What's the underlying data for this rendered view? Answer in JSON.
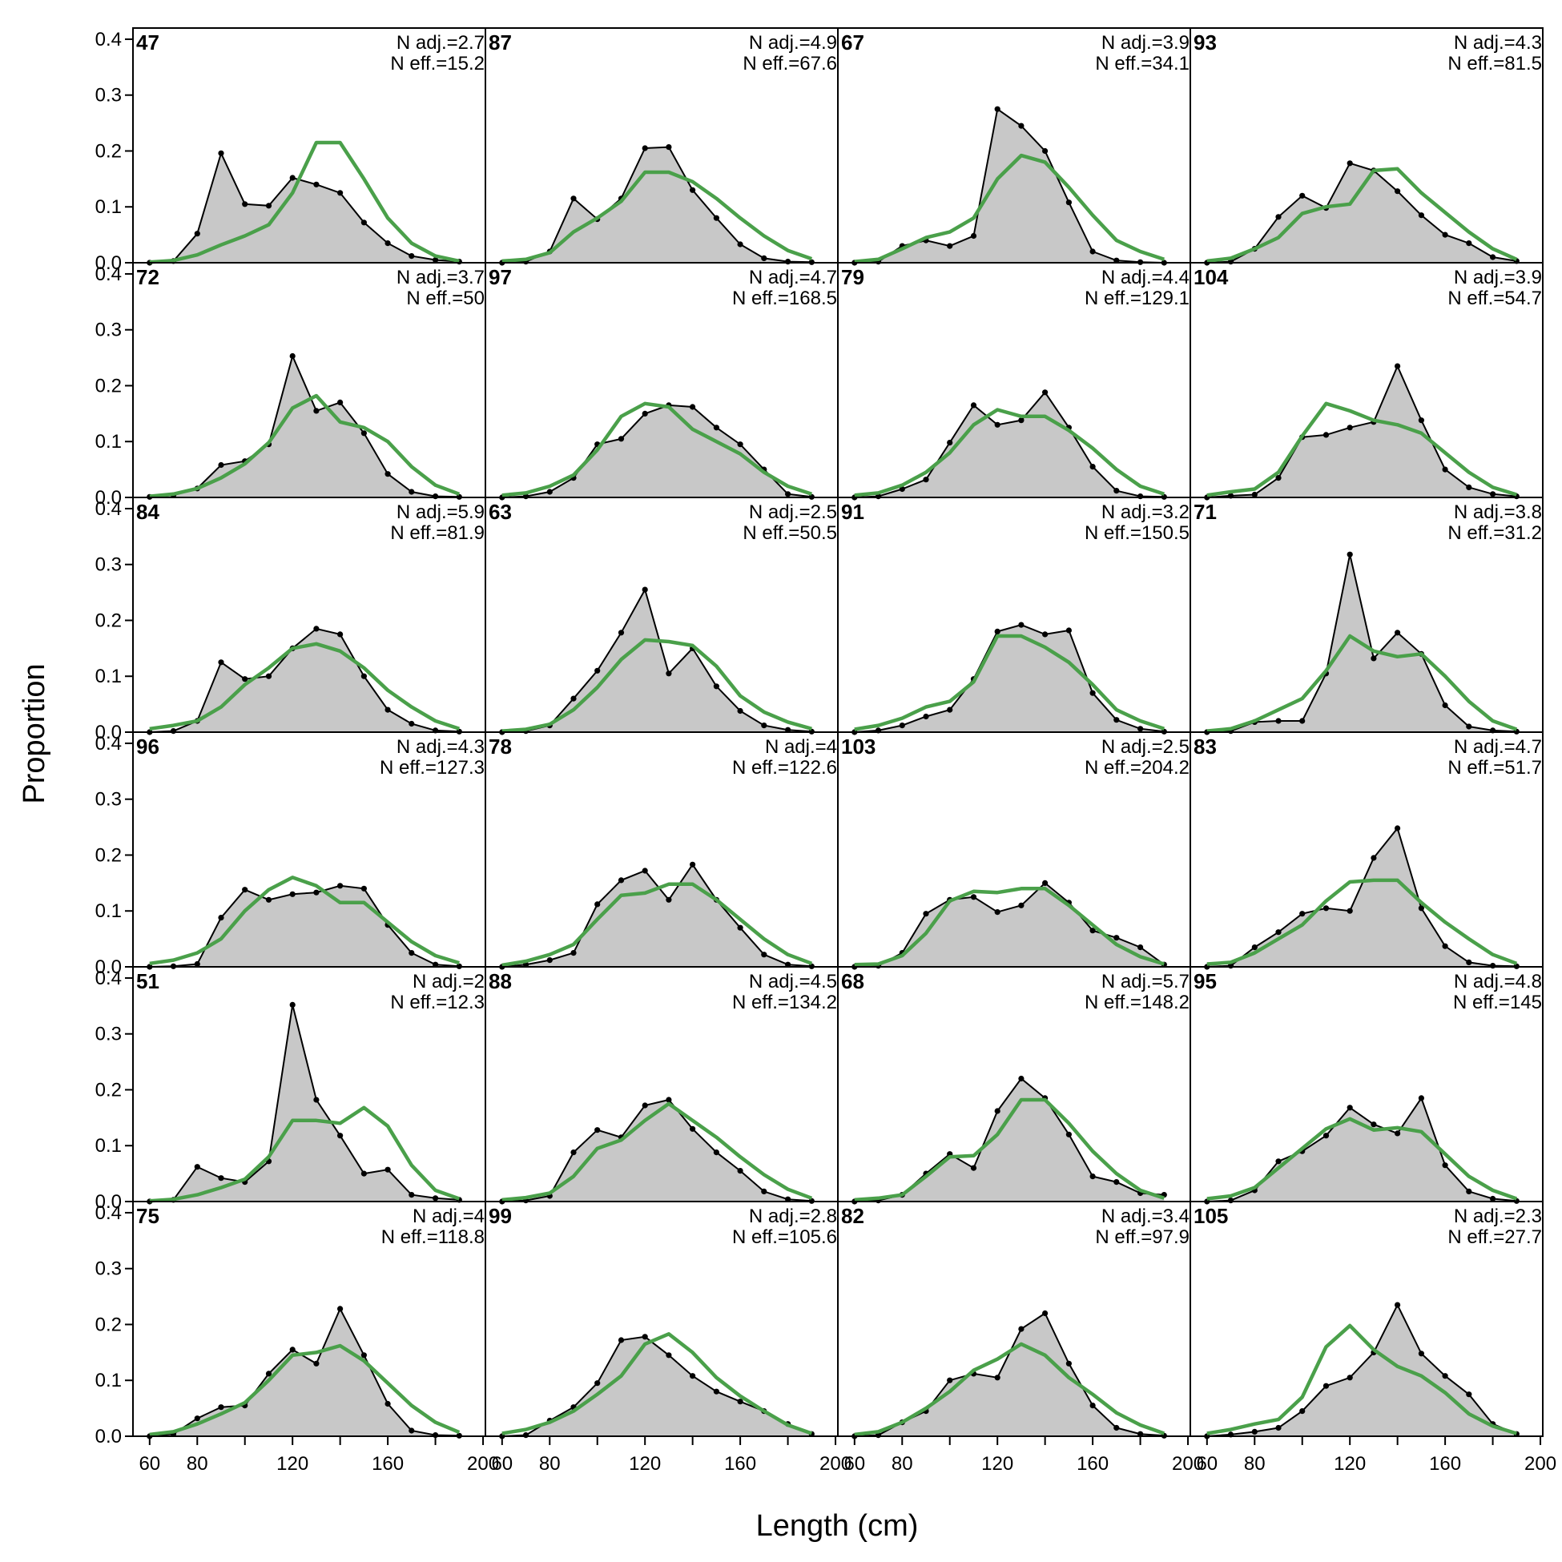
{
  "chart_data": {
    "type": "area",
    "xlabel": "Length (cm)",
    "ylabel": "Proportion",
    "xlim": [
      53,
      201
    ],
    "ylim": [
      0,
      0.42
    ],
    "x_ticks": [
      60,
      80,
      120,
      160,
      200
    ],
    "y_ticks": [
      0.0,
      0.1,
      0.2,
      0.3,
      0.4
    ],
    "y_tick_labels": [
      "0.0",
      "0.1",
      "0.2",
      "0.3",
      "0.4"
    ],
    "grid": false,
    "x": [
      60,
      70,
      80,
      90,
      100,
      110,
      120,
      130,
      140,
      150,
      160,
      170,
      180,
      190
    ],
    "colors": {
      "observed_fill": "#c8c8c8",
      "observed_line": "#000000",
      "expected_line": "#4aa04a",
      "zero_line": "#bdbdbd",
      "frame": "#000000"
    },
    "series": [
      {
        "name": "Observed",
        "role": "observed"
      },
      {
        "name": "Expected",
        "role": "expected"
      }
    ],
    "panels": [
      {
        "label": "47",
        "n_adj": "N adj.=2.7",
        "n_eff": "N eff.=15.2",
        "observed": [
          0.0,
          0.003,
          0.052,
          0.196,
          0.105,
          0.102,
          0.152,
          0.14,
          0.125,
          0.072,
          0.035,
          0.012,
          0.005,
          0.002
        ],
        "expected": [
          0.001,
          0.004,
          0.014,
          0.032,
          0.048,
          0.068,
          0.125,
          0.215,
          0.215,
          0.15,
          0.08,
          0.035,
          0.012,
          0.003
        ]
      },
      {
        "label": "72",
        "n_adj": "N adj.=3.7",
        "n_eff": "N eff.=50",
        "observed": [
          0.001,
          0.004,
          0.016,
          0.058,
          0.065,
          0.095,
          0.253,
          0.155,
          0.17,
          0.115,
          0.042,
          0.01,
          0.002,
          0.001
        ],
        "expected": [
          0.002,
          0.006,
          0.016,
          0.035,
          0.06,
          0.098,
          0.16,
          0.182,
          0.135,
          0.125,
          0.1,
          0.055,
          0.022,
          0.006
        ]
      },
      {
        "label": "84",
        "n_adj": "N adj.=5.9",
        "n_eff": "N eff.=81.9",
        "observed": [
          0.0,
          0.002,
          0.02,
          0.125,
          0.095,
          0.1,
          0.15,
          0.185,
          0.175,
          0.1,
          0.04,
          0.015,
          0.003,
          0.001
        ],
        "expected": [
          0.006,
          0.012,
          0.02,
          0.045,
          0.085,
          0.115,
          0.15,
          0.158,
          0.145,
          0.115,
          0.075,
          0.045,
          0.02,
          0.006
        ]
      },
      {
        "label": "96",
        "n_adj": "N adj.=4.3",
        "n_eff": "N eff.=127.3",
        "observed": [
          0.0,
          0.001,
          0.005,
          0.088,
          0.138,
          0.12,
          0.13,
          0.133,
          0.145,
          0.14,
          0.075,
          0.025,
          0.004,
          0.001
        ],
        "expected": [
          0.006,
          0.012,
          0.025,
          0.05,
          0.1,
          0.138,
          0.16,
          0.145,
          0.115,
          0.115,
          0.08,
          0.045,
          0.02,
          0.007
        ]
      },
      {
        "label": "51",
        "n_adj": "N adj.=2",
        "n_eff": "N eff.=12.3",
        "observed": [
          0.0,
          0.003,
          0.062,
          0.042,
          0.035,
          0.072,
          0.352,
          0.182,
          0.118,
          0.05,
          0.057,
          0.012,
          0.006,
          0.003
        ],
        "expected": [
          0.001,
          0.004,
          0.012,
          0.025,
          0.04,
          0.08,
          0.145,
          0.145,
          0.14,
          0.168,
          0.135,
          0.065,
          0.02,
          0.005
        ]
      },
      {
        "label": "75",
        "n_adj": "N adj.=4",
        "n_eff": "N eff.=118.8",
        "observed": [
          0.0,
          0.004,
          0.032,
          0.052,
          0.055,
          0.112,
          0.155,
          0.13,
          0.228,
          0.145,
          0.058,
          0.01,
          0.002,
          0.001
        ],
        "expected": [
          0.003,
          0.008,
          0.022,
          0.04,
          0.06,
          0.1,
          0.145,
          0.15,
          0.162,
          0.135,
          0.095,
          0.055,
          0.025,
          0.007
        ]
      },
      {
        "label": "87",
        "n_adj": "N adj.=4.9",
        "n_eff": "N eff.=67.6",
        "observed": [
          0.0,
          0.002,
          0.02,
          0.115,
          0.078,
          0.115,
          0.205,
          0.207,
          0.13,
          0.08,
          0.033,
          0.008,
          0.002,
          0.001
        ],
        "expected": [
          0.003,
          0.006,
          0.018,
          0.055,
          0.08,
          0.11,
          0.162,
          0.162,
          0.145,
          0.115,
          0.08,
          0.048,
          0.022,
          0.007
        ]
      },
      {
        "label": "97",
        "n_adj": "N adj.=4.7",
        "n_eff": "N eff.=168.5",
        "observed": [
          0.0,
          0.002,
          0.01,
          0.035,
          0.095,
          0.105,
          0.15,
          0.165,
          0.162,
          0.125,
          0.095,
          0.05,
          0.006,
          0.001
        ],
        "expected": [
          0.004,
          0.008,
          0.02,
          0.04,
          0.085,
          0.145,
          0.168,
          0.162,
          0.122,
          0.1,
          0.078,
          0.045,
          0.02,
          0.006
        ]
      },
      {
        "label": "63",
        "n_adj": "N adj.=2.5",
        "n_eff": "N eff.=50.5",
        "observed": [
          0.0,
          0.002,
          0.012,
          0.06,
          0.11,
          0.178,
          0.255,
          0.105,
          0.15,
          0.082,
          0.038,
          0.012,
          0.004,
          0.001
        ],
        "expected": [
          0.002,
          0.005,
          0.014,
          0.04,
          0.08,
          0.13,
          0.165,
          0.162,
          0.155,
          0.118,
          0.065,
          0.036,
          0.018,
          0.006
        ]
      },
      {
        "label": "78",
        "n_adj": "N adj.=4",
        "n_eff": "N eff.=122.6",
        "observed": [
          0.0,
          0.004,
          0.012,
          0.025,
          0.112,
          0.155,
          0.172,
          0.12,
          0.183,
          0.12,
          0.07,
          0.022,
          0.004,
          0.001
        ],
        "expected": [
          0.003,
          0.01,
          0.022,
          0.04,
          0.085,
          0.128,
          0.132,
          0.148,
          0.148,
          0.12,
          0.085,
          0.05,
          0.022,
          0.006
        ]
      },
      {
        "label": "88",
        "n_adj": "N adj.=4.5",
        "n_eff": "N eff.=134.2",
        "observed": [
          0.0,
          0.002,
          0.01,
          0.088,
          0.128,
          0.115,
          0.172,
          0.182,
          0.13,
          0.088,
          0.055,
          0.018,
          0.004,
          0.001
        ],
        "expected": [
          0.003,
          0.007,
          0.015,
          0.045,
          0.095,
          0.11,
          0.145,
          0.175,
          0.145,
          0.115,
          0.08,
          0.048,
          0.022,
          0.006
        ]
      },
      {
        "label": "99",
        "n_adj": "N adj.=2.8",
        "n_eff": "N eff.=105.6",
        "observed": [
          0.0,
          0.002,
          0.028,
          0.052,
          0.095,
          0.172,
          0.178,
          0.145,
          0.108,
          0.08,
          0.062,
          0.045,
          0.022,
          0.004
        ],
        "expected": [
          0.005,
          0.012,
          0.025,
          0.045,
          0.075,
          0.108,
          0.165,
          0.183,
          0.15,
          0.105,
          0.072,
          0.045,
          0.02,
          0.005
        ]
      },
      {
        "label": "67",
        "n_adj": "N adj.=3.9",
        "n_eff": "N eff.=34.1",
        "observed": [
          0.0,
          0.002,
          0.03,
          0.04,
          0.03,
          0.048,
          0.275,
          0.245,
          0.2,
          0.108,
          0.02,
          0.004,
          0.001,
          0.0
        ],
        "expected": [
          0.002,
          0.006,
          0.025,
          0.045,
          0.055,
          0.08,
          0.15,
          0.192,
          0.18,
          0.135,
          0.085,
          0.04,
          0.02,
          0.006
        ]
      },
      {
        "label": "79",
        "n_adj": "N adj.=4.4",
        "n_eff": "N eff.=129.1",
        "observed": [
          0.0,
          0.002,
          0.015,
          0.032,
          0.098,
          0.165,
          0.13,
          0.138,
          0.188,
          0.125,
          0.055,
          0.012,
          0.002,
          0.001
        ],
        "expected": [
          0.004,
          0.008,
          0.022,
          0.045,
          0.08,
          0.13,
          0.157,
          0.145,
          0.145,
          0.12,
          0.088,
          0.05,
          0.02,
          0.006
        ]
      },
      {
        "label": "91",
        "n_adj": "N adj.=3.2",
        "n_eff": "N eff.=150.5",
        "observed": [
          0.0,
          0.003,
          0.012,
          0.028,
          0.04,
          0.095,
          0.18,
          0.192,
          0.175,
          0.182,
          0.07,
          0.022,
          0.006,
          0.001
        ],
        "expected": [
          0.005,
          0.012,
          0.025,
          0.045,
          0.055,
          0.09,
          0.172,
          0.172,
          0.152,
          0.125,
          0.085,
          0.04,
          0.02,
          0.006
        ]
      },
      {
        "label": "103",
        "n_adj": "N adj.=2.5",
        "n_eff": "N eff.=204.2",
        "observed": [
          0.0,
          0.002,
          0.025,
          0.095,
          0.12,
          0.125,
          0.098,
          0.11,
          0.15,
          0.115,
          0.065,
          0.052,
          0.035,
          0.004
        ],
        "expected": [
          0.004,
          0.005,
          0.02,
          0.06,
          0.118,
          0.135,
          0.133,
          0.14,
          0.14,
          0.11,
          0.075,
          0.04,
          0.018,
          0.005
        ]
      },
      {
        "label": "68",
        "n_adj": "N adj.=5.7",
        "n_eff": "N eff.=148.2",
        "observed": [
          0.0,
          0.002,
          0.012,
          0.05,
          0.085,
          0.06,
          0.162,
          0.22,
          0.185,
          0.12,
          0.045,
          0.035,
          0.015,
          0.012
        ],
        "expected": [
          0.003,
          0.006,
          0.012,
          0.045,
          0.08,
          0.082,
          0.12,
          0.182,
          0.182,
          0.14,
          0.09,
          0.05,
          0.02,
          0.006
        ]
      },
      {
        "label": "82",
        "n_adj": "N adj.=3.4",
        "n_eff": "N eff.=97.9",
        "observed": [
          0.0,
          0.002,
          0.025,
          0.045,
          0.1,
          0.112,
          0.105,
          0.192,
          0.22,
          0.13,
          0.055,
          0.015,
          0.004,
          0.001
        ],
        "expected": [
          0.003,
          0.008,
          0.025,
          0.05,
          0.08,
          0.118,
          0.138,
          0.165,
          0.145,
          0.105,
          0.075,
          0.042,
          0.02,
          0.005
        ]
      },
      {
        "label": "93",
        "n_adj": "N adj.=4.3",
        "n_eff": "N eff.=81.5",
        "observed": [
          0.0,
          0.002,
          0.025,
          0.082,
          0.12,
          0.098,
          0.178,
          0.165,
          0.128,
          0.085,
          0.05,
          0.035,
          0.01,
          0.003
        ],
        "expected": [
          0.003,
          0.008,
          0.025,
          0.045,
          0.088,
          0.1,
          0.105,
          0.165,
          0.168,
          0.125,
          0.09,
          0.055,
          0.025,
          0.006
        ]
      },
      {
        "label": "104",
        "n_adj": "N adj.=3.9",
        "n_eff": "N eff.=54.7",
        "observed": [
          0.0,
          0.003,
          0.005,
          0.035,
          0.108,
          0.112,
          0.125,
          0.135,
          0.235,
          0.138,
          0.05,
          0.018,
          0.006,
          0.002
        ],
        "expected": [
          0.004,
          0.01,
          0.015,
          0.045,
          0.11,
          0.168,
          0.155,
          0.138,
          0.13,
          0.115,
          0.08,
          0.045,
          0.018,
          0.005
        ]
      },
      {
        "label": "71",
        "n_adj": "N adj.=3.8",
        "n_eff": "N eff.=31.2",
        "observed": [
          0.0,
          0.002,
          0.018,
          0.02,
          0.02,
          0.105,
          0.318,
          0.132,
          0.178,
          0.14,
          0.048,
          0.01,
          0.003,
          0.001
        ],
        "expected": [
          0.002,
          0.006,
          0.02,
          0.04,
          0.06,
          0.11,
          0.172,
          0.145,
          0.135,
          0.14,
          0.1,
          0.055,
          0.02,
          0.005
        ]
      },
      {
        "label": "83",
        "n_adj": "N adj.=4.7",
        "n_eff": "N eff.=51.7",
        "observed": [
          0.0,
          0.002,
          0.035,
          0.062,
          0.095,
          0.105,
          0.1,
          0.195,
          0.248,
          0.105,
          0.037,
          0.008,
          0.002,
          0.001
        ],
        "expected": [
          0.005,
          0.008,
          0.025,
          0.05,
          0.075,
          0.118,
          0.152,
          0.155,
          0.155,
          0.115,
          0.08,
          0.05,
          0.022,
          0.006
        ]
      },
      {
        "label": "95",
        "n_adj": "N adj.=4.8",
        "n_eff": "N eff.=145",
        "observed": [
          0.0,
          0.002,
          0.02,
          0.072,
          0.09,
          0.118,
          0.168,
          0.138,
          0.122,
          0.185,
          0.065,
          0.018,
          0.005,
          0.001
        ],
        "expected": [
          0.005,
          0.01,
          0.025,
          0.06,
          0.095,
          0.13,
          0.148,
          0.128,
          0.132,
          0.125,
          0.085,
          0.045,
          0.02,
          0.005
        ]
      },
      {
        "label": "105",
        "n_adj": "N adj.=2.3",
        "n_eff": "N eff.=27.7",
        "observed": [
          0.0,
          0.003,
          0.008,
          0.015,
          0.045,
          0.09,
          0.105,
          0.15,
          0.235,
          0.148,
          0.108,
          0.075,
          0.022,
          0.004
        ],
        "expected": [
          0.005,
          0.012,
          0.022,
          0.03,
          0.07,
          0.16,
          0.198,
          0.155,
          0.125,
          0.108,
          0.078,
          0.04,
          0.018,
          0.005
        ]
      }
    ]
  }
}
